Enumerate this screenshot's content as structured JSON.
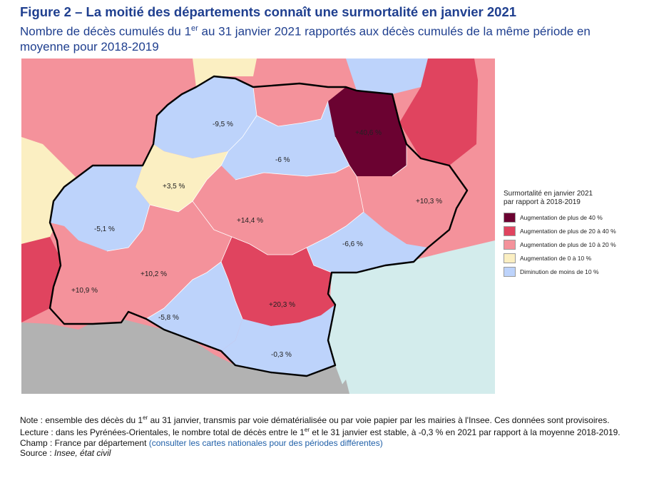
{
  "figure": {
    "title": "Figure 2 – La moitié des départements connaît une surmortalité en janvier 2021",
    "subtitle_before_sup": "Nombre de décès cumulés du 1",
    "subtitle_sup": "er",
    "subtitle_after_sup": " au 31 janvier 2021 rapportés aux décès cumulés de la même période en moyenne pour 2018-2019"
  },
  "colors": {
    "over_40": "#6b0231",
    "20_40": "#e0445f",
    "10_20": "#f4929b",
    "0_10": "#fbefc2",
    "decrease": "#bdd3fb",
    "sea": "#d3ecec",
    "foreign": "#b2b2b2",
    "region_border": "#000000"
  },
  "map": {
    "departments": [
      {
        "id": "ariege",
        "value_label": "-5,8 %",
        "category": "decrease"
      },
      {
        "id": "aude",
        "value_label": "+20,3 %",
        "category": "20_40"
      },
      {
        "id": "aveyron",
        "value_label": "+14,4 %",
        "category": "10_20"
      },
      {
        "id": "gard",
        "value_label": "+10,3 %",
        "category": "10_20"
      },
      {
        "id": "haute-garonne",
        "value_label": "+10,2 %",
        "category": "10_20"
      },
      {
        "id": "gers",
        "value_label": "-5,1 %",
        "category": "decrease"
      },
      {
        "id": "herault",
        "value_label": "-6,6 %",
        "category": "decrease"
      },
      {
        "id": "lot",
        "value_label": "-9,5 %",
        "category": "decrease"
      },
      {
        "id": "lozere",
        "value_label": "+40,6 %",
        "category": "over_40"
      },
      {
        "id": "hautes-pyrenees",
        "value_label": "+10,9 %",
        "category": "10_20"
      },
      {
        "id": "pyrenees-orientales",
        "value_label": "-0,3 %",
        "category": "decrease"
      },
      {
        "id": "tarn",
        "value_label": "-6 %",
        "category": "decrease"
      },
      {
        "id": "tarn-et-garonne",
        "value_label": "+3,5 %",
        "category": "0_10"
      }
    ]
  },
  "legend": {
    "title_line1": "Surmortalité en janvier 2021",
    "title_line2": "par rapport à 2018-2019",
    "items": [
      {
        "label": "Augmentation de plus de 40 %",
        "category": "over_40"
      },
      {
        "label": "Augmentation de plus de 20 à 40 %",
        "category": "20_40"
      },
      {
        "label": "Augmentation de plus de 10 à 20 %",
        "category": "10_20"
      },
      {
        "label": "Augmentation de 0 à 10 %",
        "category": "0_10"
      },
      {
        "label": "Diminution de moins de 10 %",
        "category": "decrease"
      }
    ]
  },
  "notes": {
    "note_a": "Note : ensemble des décès du 1",
    "note_sup": "er",
    "note_b": " au 31 janvier, transmis par voie dématérialisée ou par voie papier par les mairies à l'Insee. Ces données sont provisoires.",
    "lecture_a": "Lecture : dans les Pyrénées-Orientales, le nombre total de décès entre le 1",
    "lecture_sup": "er",
    "lecture_b": " et le 31 janvier est stable, à -0,3 % en 2021 par rapport à la moyenne 2018-2019.",
    "champ": "Champ : France par département ",
    "champ_link": "(consulter les cartes nationales pour des périodes différentes)",
    "source_a": "Source : ",
    "source_b": "Insee, état civil"
  }
}
